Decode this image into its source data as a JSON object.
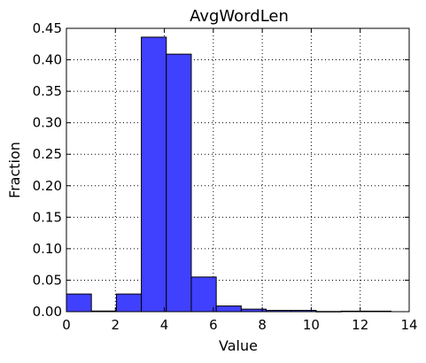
{
  "chart_data": {
    "type": "bar",
    "title": "AvgWordLen",
    "xlabel": "Value",
    "ylabel": "Fraction",
    "xlim": [
      0,
      14
    ],
    "ylim": [
      0,
      0.45
    ],
    "xticks": [
      0,
      2,
      4,
      6,
      8,
      10,
      12,
      14
    ],
    "yticks": [
      0.0,
      0.05,
      0.1,
      0.15,
      0.2,
      0.25,
      0.3,
      0.35,
      0.4,
      0.45
    ],
    "grid": true,
    "bar_color": "#4040ff",
    "bins": [
      {
        "x0": 0.0,
        "x1": 1.02,
        "value": 0.028
      },
      {
        "x0": 1.02,
        "x1": 2.04,
        "value": 0.001
      },
      {
        "x0": 2.04,
        "x1": 3.06,
        "value": 0.028
      },
      {
        "x0": 3.06,
        "x1": 4.08,
        "value": 0.436
      },
      {
        "x0": 4.08,
        "x1": 5.1,
        "value": 0.409
      },
      {
        "x0": 5.1,
        "x1": 6.12,
        "value": 0.055
      },
      {
        "x0": 6.12,
        "x1": 7.14,
        "value": 0.009
      },
      {
        "x0": 7.14,
        "x1": 8.16,
        "value": 0.004
      },
      {
        "x0": 8.16,
        "x1": 9.18,
        "value": 0.002
      },
      {
        "x0": 9.18,
        "x1": 10.2,
        "value": 0.002
      },
      {
        "x0": 10.2,
        "x1": 11.22,
        "value": 0.0003
      },
      {
        "x0": 11.22,
        "x1": 12.24,
        "value": 0.0008
      },
      {
        "x0": 12.24,
        "x1": 13.26,
        "value": 0.0008
      }
    ]
  }
}
